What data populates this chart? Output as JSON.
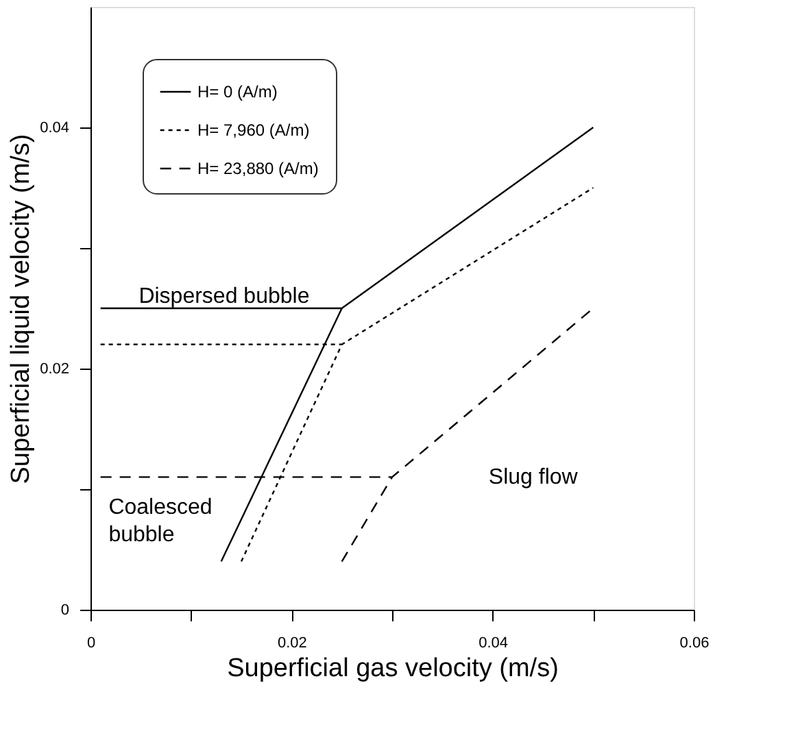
{
  "chart_data": {
    "type": "line",
    "xlabel": "Superficial gas velocity (m/s)",
    "ylabel": "Superficial liquid velocity (m/s)",
    "xlim": [
      0,
      0.06
    ],
    "ylim": [
      0,
      0.05
    ],
    "xticks": [
      0,
      {
        "value": 0.01,
        "label": null
      },
      0.02,
      {
        "value": 0.03,
        "label": null
      },
      0.04,
      {
        "value": 0.05,
        "label": null
      },
      0.06
    ],
    "yticks": [
      0,
      {
        "value": 0.01,
        "label": null
      },
      0.02,
      {
        "value": 0.03,
        "label": null
      },
      0.04
    ],
    "grid": false,
    "legend": "top left",
    "marker": "none",
    "series": [
      {
        "name": "H= 0 (A/m)",
        "color": "#000000",
        "line_style": "solid",
        "x": [
          0.001,
          0.025,
          null,
          0.013,
          0.025,
          0.05
        ],
        "values": [
          0.025,
          0.025,
          null,
          0.004,
          0.025,
          0.04
        ]
      },
      {
        "name": "H= 7,960 (A/m)",
        "color": "#000000",
        "line_style": "dotted",
        "x": [
          0.001,
          0.025,
          null,
          0.015,
          0.025,
          0.05
        ],
        "values": [
          0.022,
          0.022,
          null,
          0.004,
          0.022,
          0.035
        ]
      },
      {
        "name": "H= 23,880 (A/m)",
        "color": "#000000",
        "line_style": "dashed",
        "x": [
          0.001,
          0.03,
          null,
          0.025,
          0.03,
          0.05
        ],
        "values": [
          0.011,
          0.011,
          null,
          0.004,
          0.011,
          0.025
        ]
      }
    ],
    "annotations": [
      "Dispersed bubble",
      "Coalesced bubble",
      "Slug flow"
    ]
  }
}
